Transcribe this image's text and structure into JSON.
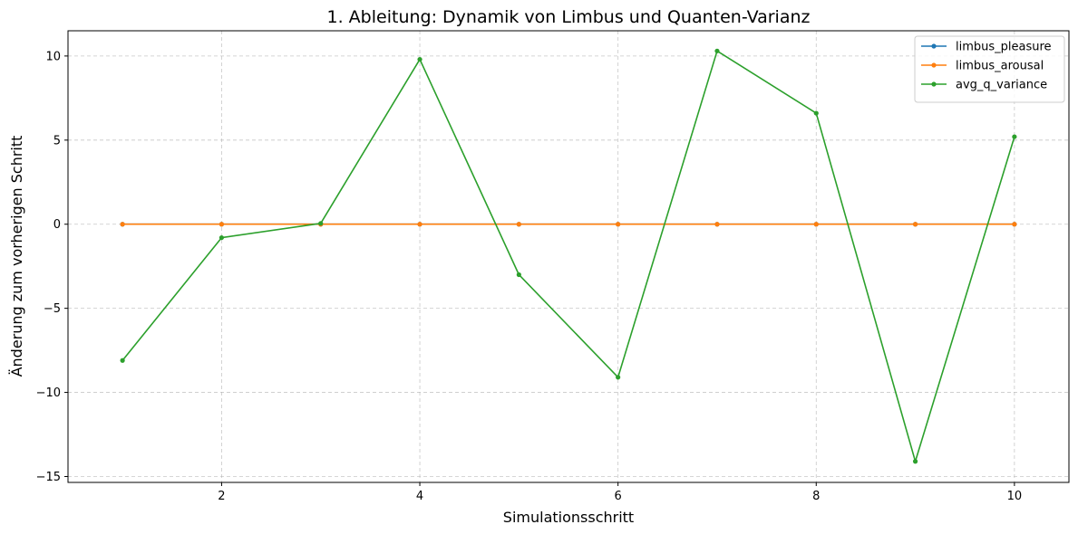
{
  "chart_data": {
    "type": "line",
    "title": "1. Ableitung: Dynamik von Limbus und Quanten-Varianz",
    "xlabel": "Simulationsschritt",
    "ylabel": "Änderung zum vorherigen Schritt",
    "x": [
      1,
      2,
      3,
      4,
      5,
      6,
      7,
      8,
      9,
      10
    ],
    "xlim": [
      0.45,
      10.55
    ],
    "ylim": [
      -15.35,
      11.5
    ],
    "xticks": [
      2,
      4,
      6,
      8,
      10
    ],
    "yticks": [
      -15,
      -10,
      -5,
      0,
      5,
      10
    ],
    "xtick_labels": [
      "2",
      "4",
      "6",
      "8",
      "10"
    ],
    "ytick_labels": [
      "−15",
      "−10",
      "−5",
      "0",
      "5",
      "10"
    ],
    "grid": true,
    "legend_position": "top-right",
    "series": [
      {
        "name": "limbus_pleasure",
        "color": "#1f77b4",
        "values": [
          0,
          0,
          0,
          0,
          0,
          0,
          0,
          0,
          0,
          0
        ]
      },
      {
        "name": "limbus_arousal",
        "color": "#ff7f0e",
        "values": [
          0,
          0,
          0,
          0,
          0,
          0,
          0,
          0,
          0,
          0
        ]
      },
      {
        "name": "avg_q_variance",
        "color": "#2ca02c",
        "values": [
          -8.1,
          -0.8,
          0.05,
          9.8,
          -3.0,
          -9.1,
          10.3,
          6.6,
          -14.1,
          5.2
        ]
      }
    ]
  }
}
